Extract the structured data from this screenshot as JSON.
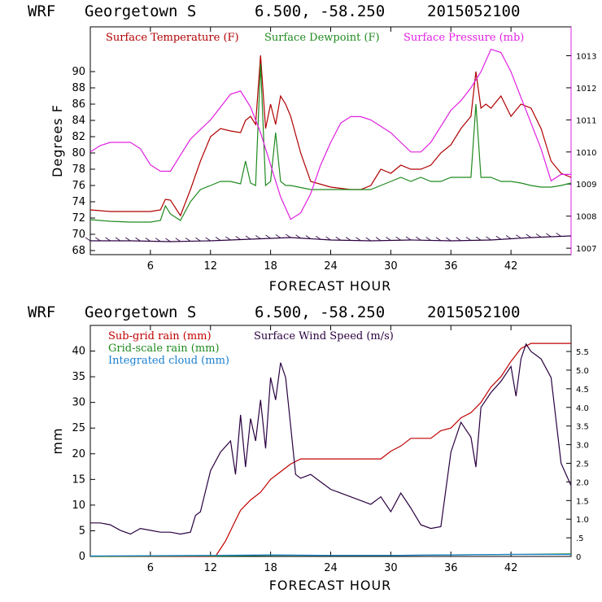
{
  "colors": {
    "temperature": "#b00000",
    "dewpoint": "#1f8a1f",
    "pressure": "#e020e0",
    "wind": "#2a0040",
    "subgrid": "#c00000",
    "gridscale": "#1f8a1f",
    "cloud": "#1a7fd0"
  },
  "chart_data": [
    {
      "type": "line",
      "header": {
        "model": "WRF",
        "location": "Georgetown S",
        "coords": "6.500, -58.250",
        "init": "2015052100"
      },
      "xlabel": "FORECAST HOUR",
      "ylabel": "Degrees F",
      "xlim": [
        0,
        48
      ],
      "ylim": [
        67.5,
        95.5
      ],
      "xticks": [
        "6",
        "12",
        "18",
        "24",
        "30",
        "36",
        "42"
      ],
      "yticks": [
        "68",
        "70",
        "72",
        "74",
        "76",
        "78",
        "80",
        "82",
        "84",
        "86",
        "88",
        "90"
      ],
      "y2lim": [
        1006.8,
        1013.9
      ],
      "y2ticks": [
        "1007",
        "1008",
        "1009",
        "1010",
        "1011",
        "1012",
        "1013"
      ],
      "legend": [
        "Surface Temperature (F)",
        "Surface Dewpoint (F)",
        "Surface Pressure (mb)"
      ],
      "series": [
        {
          "name": "Surface Temperature (F)",
          "axis": "left",
          "x": [
            0,
            2,
            4,
            6,
            7,
            7.5,
            8,
            9,
            10,
            11,
            12,
            13,
            14,
            15,
            15.5,
            16,
            16.5,
            17,
            17.5,
            18,
            18.5,
            19,
            19.5,
            20,
            21,
            22,
            24,
            26,
            27,
            28,
            29,
            30,
            31,
            32,
            33,
            34,
            35,
            36,
            37,
            38,
            38.5,
            39,
            39.5,
            40,
            41,
            42,
            43,
            44,
            45,
            46,
            47,
            48
          ],
          "y": [
            73,
            72.8,
            72.8,
            72.8,
            73,
            74.3,
            74.2,
            72.3,
            75.5,
            79,
            82,
            83,
            82.7,
            82.5,
            84,
            84.5,
            83.5,
            92,
            83,
            86,
            83.5,
            87,
            86,
            84.5,
            80,
            76.5,
            75.8,
            75.5,
            75.5,
            76,
            78,
            77.5,
            78.5,
            78,
            78,
            78.5,
            80,
            81,
            83,
            84.5,
            90,
            85.5,
            86,
            85.5,
            87,
            84.5,
            86,
            85.5,
            83,
            79,
            77.5,
            77
          ]
        },
        {
          "name": "Surface Dewpoint (F)",
          "axis": "left",
          "x": [
            0,
            2,
            4,
            6,
            7,
            7.5,
            8,
            9,
            10,
            11,
            12,
            13,
            14,
            15,
            15.5,
            16,
            16.5,
            17,
            17.5,
            18,
            18.5,
            19,
            19.5,
            20,
            22,
            24,
            26,
            28,
            29,
            30,
            31,
            32,
            33,
            34,
            35,
            36,
            37,
            38,
            38.5,
            39,
            40,
            41,
            42,
            43,
            44,
            45,
            46,
            47,
            48
          ],
          "y": [
            71.8,
            71.6,
            71.5,
            71.5,
            71.7,
            73.5,
            72.5,
            71.7,
            74,
            75.5,
            76,
            76.5,
            76.5,
            76.2,
            79,
            76.3,
            76,
            91,
            76,
            76.5,
            82.5,
            76.5,
            76,
            76,
            75.5,
            75.5,
            75.5,
            75.5,
            76,
            76.5,
            77,
            76.5,
            77,
            76.5,
            76.5,
            77,
            77,
            77,
            86,
            77,
            77,
            76.5,
            76.5,
            76.3,
            76,
            75.8,
            75.8,
            76,
            76.3
          ]
        },
        {
          "name": "Surface Pressure (mb)",
          "axis": "right",
          "x": [
            0,
            1,
            2,
            3,
            4,
            5,
            6,
            7,
            8,
            9,
            10,
            11,
            12,
            13,
            14,
            15,
            16,
            17,
            18,
            19,
            20,
            21,
            22,
            23,
            24,
            25,
            26,
            27,
            28,
            29,
            30,
            31,
            32,
            33,
            34,
            35,
            36,
            37,
            38,
            39,
            40,
            41,
            42,
            43,
            44,
            45,
            46,
            47,
            48
          ],
          "y": [
            1010,
            1010.2,
            1010.3,
            1010.3,
            1010.3,
            1010.1,
            1009.6,
            1009.4,
            1009.4,
            1009.9,
            1010.4,
            1010.7,
            1011,
            1011.4,
            1011.8,
            1011.9,
            1011.4,
            1010.6,
            1009.6,
            1008.6,
            1007.9,
            1008.1,
            1008.7,
            1009.6,
            1010.3,
            1010.9,
            1011.1,
            1011.1,
            1011,
            1010.8,
            1010.6,
            1010.3,
            1010,
            1010,
            1010.3,
            1010.8,
            1011.3,
            1011.6,
            1012,
            1012.5,
            1013.2,
            1013.1,
            1012.5,
            1011.7,
            1010.9,
            1010.1,
            1009.1,
            1009.3,
            1009.3
          ]
        },
        {
          "name": "wind barbs",
          "axis": "left",
          "x": [
            0,
            4,
            8,
            12,
            16,
            20,
            24,
            28,
            32,
            36,
            40,
            44,
            48
          ],
          "y": [
            69.2,
            69.2,
            69.1,
            69.2,
            69.4,
            69.6,
            69.3,
            69.2,
            69.3,
            69.2,
            69.3,
            69.6,
            69.8
          ]
        }
      ]
    },
    {
      "type": "line",
      "header": {
        "model": "WRF",
        "location": "Georgetown S",
        "coords": "6.500, -58.250",
        "init": "2015052100"
      },
      "xlabel": "FORECAST HOUR",
      "ylabel": "mm",
      "xlim": [
        0,
        48
      ],
      "ylim": [
        0,
        45
      ],
      "xticks": [
        "6",
        "12",
        "18",
        "24",
        "30",
        "36",
        "42"
      ],
      "yticks": [
        "0",
        "5",
        "10",
        "15",
        "20",
        "25",
        "30",
        "35",
        "40"
      ],
      "y2lim": [
        0,
        6.2
      ],
      "y2ticks": [
        "0",
        ".5",
        "1.0",
        "1.5",
        "2.0",
        "2.5",
        "3.0",
        "3.5",
        "4.0",
        "4.5",
        "5.0",
        "5.5"
      ],
      "legend": [
        "Sub-grid rain (mm)",
        "Surface Wind Speed (m/s)",
        "Grid-scale rain (mm)",
        "Integrated cloud (mm)"
      ],
      "series": [
        {
          "name": "Sub-grid rain (mm)",
          "axis": "left",
          "x": [
            0,
            12.5,
            13.5,
            14.5,
            15,
            16,
            17,
            18,
            19,
            20,
            21,
            22,
            24,
            26,
            28,
            29,
            30,
            31,
            32,
            33,
            34,
            35,
            36,
            37,
            38,
            39,
            40,
            41,
            42,
            43,
            44,
            45,
            46,
            47,
            48
          ],
          "y": [
            0,
            0,
            3,
            7,
            9,
            11,
            12.5,
            15,
            16.5,
            18,
            19,
            19,
            19,
            19,
            19,
            19,
            20.5,
            21.5,
            23,
            23,
            23,
            24.5,
            25,
            27,
            28,
            30,
            33,
            35,
            38,
            40.5,
            41.5,
            41.5,
            41.5,
            41.5,
            41.5
          ]
        },
        {
          "name": "Grid-scale rain (mm)",
          "axis": "left",
          "x": [
            0,
            13,
            18,
            24,
            30,
            36,
            42,
            48
          ],
          "y": [
            0,
            0.1,
            0.2,
            0.2,
            0.2,
            0.3,
            0.4,
            0.5
          ]
        },
        {
          "name": "Integrated cloud (mm)",
          "axis": "left",
          "x": [
            0,
            12,
            18,
            24,
            30,
            36,
            42,
            48
          ],
          "y": [
            0.1,
            0.2,
            0.3,
            0.2,
            0.2,
            0.3,
            0.4,
            0.4
          ]
        },
        {
          "name": "Surface Wind Speed (m/s)",
          "axis": "right",
          "x": [
            0,
            1,
            2,
            3,
            4,
            5,
            6,
            7,
            8,
            9,
            10,
            10.5,
            11,
            12,
            13,
            14,
            14.5,
            15,
            15.5,
            16,
            16.5,
            17,
            17.5,
            18,
            18.5,
            19,
            19.5,
            20,
            20.5,
            21,
            22,
            23,
            24,
            25,
            26,
            27,
            28,
            29,
            30,
            31,
            32,
            33,
            34,
            35,
            36,
            37,
            38,
            38.5,
            39,
            40,
            41,
            42,
            42.5,
            43,
            43.5,
            44,
            45,
            46,
            47,
            48
          ],
          "y": [
            0.9,
            0.9,
            0.85,
            0.7,
            0.6,
            0.75,
            0.7,
            0.65,
            0.65,
            0.6,
            0.65,
            1.1,
            1.2,
            2.3,
            2.8,
            3.1,
            2.2,
            3.8,
            2.4,
            3.7,
            3.1,
            4.2,
            2.9,
            4.8,
            4.2,
            5.2,
            4.8,
            3.5,
            2.2,
            2.1,
            2.2,
            2.0,
            1.8,
            1.7,
            1.6,
            1.5,
            1.4,
            1.6,
            1.2,
            1.7,
            1.3,
            0.85,
            0.75,
            0.8,
            2.8,
            3.6,
            3.2,
            2.4,
            4.0,
            4.4,
            4.7,
            5.1,
            4.3,
            5.3,
            5.7,
            5.5,
            5.3,
            4.8,
            2.5,
            1.9
          ]
        }
      ]
    }
  ]
}
